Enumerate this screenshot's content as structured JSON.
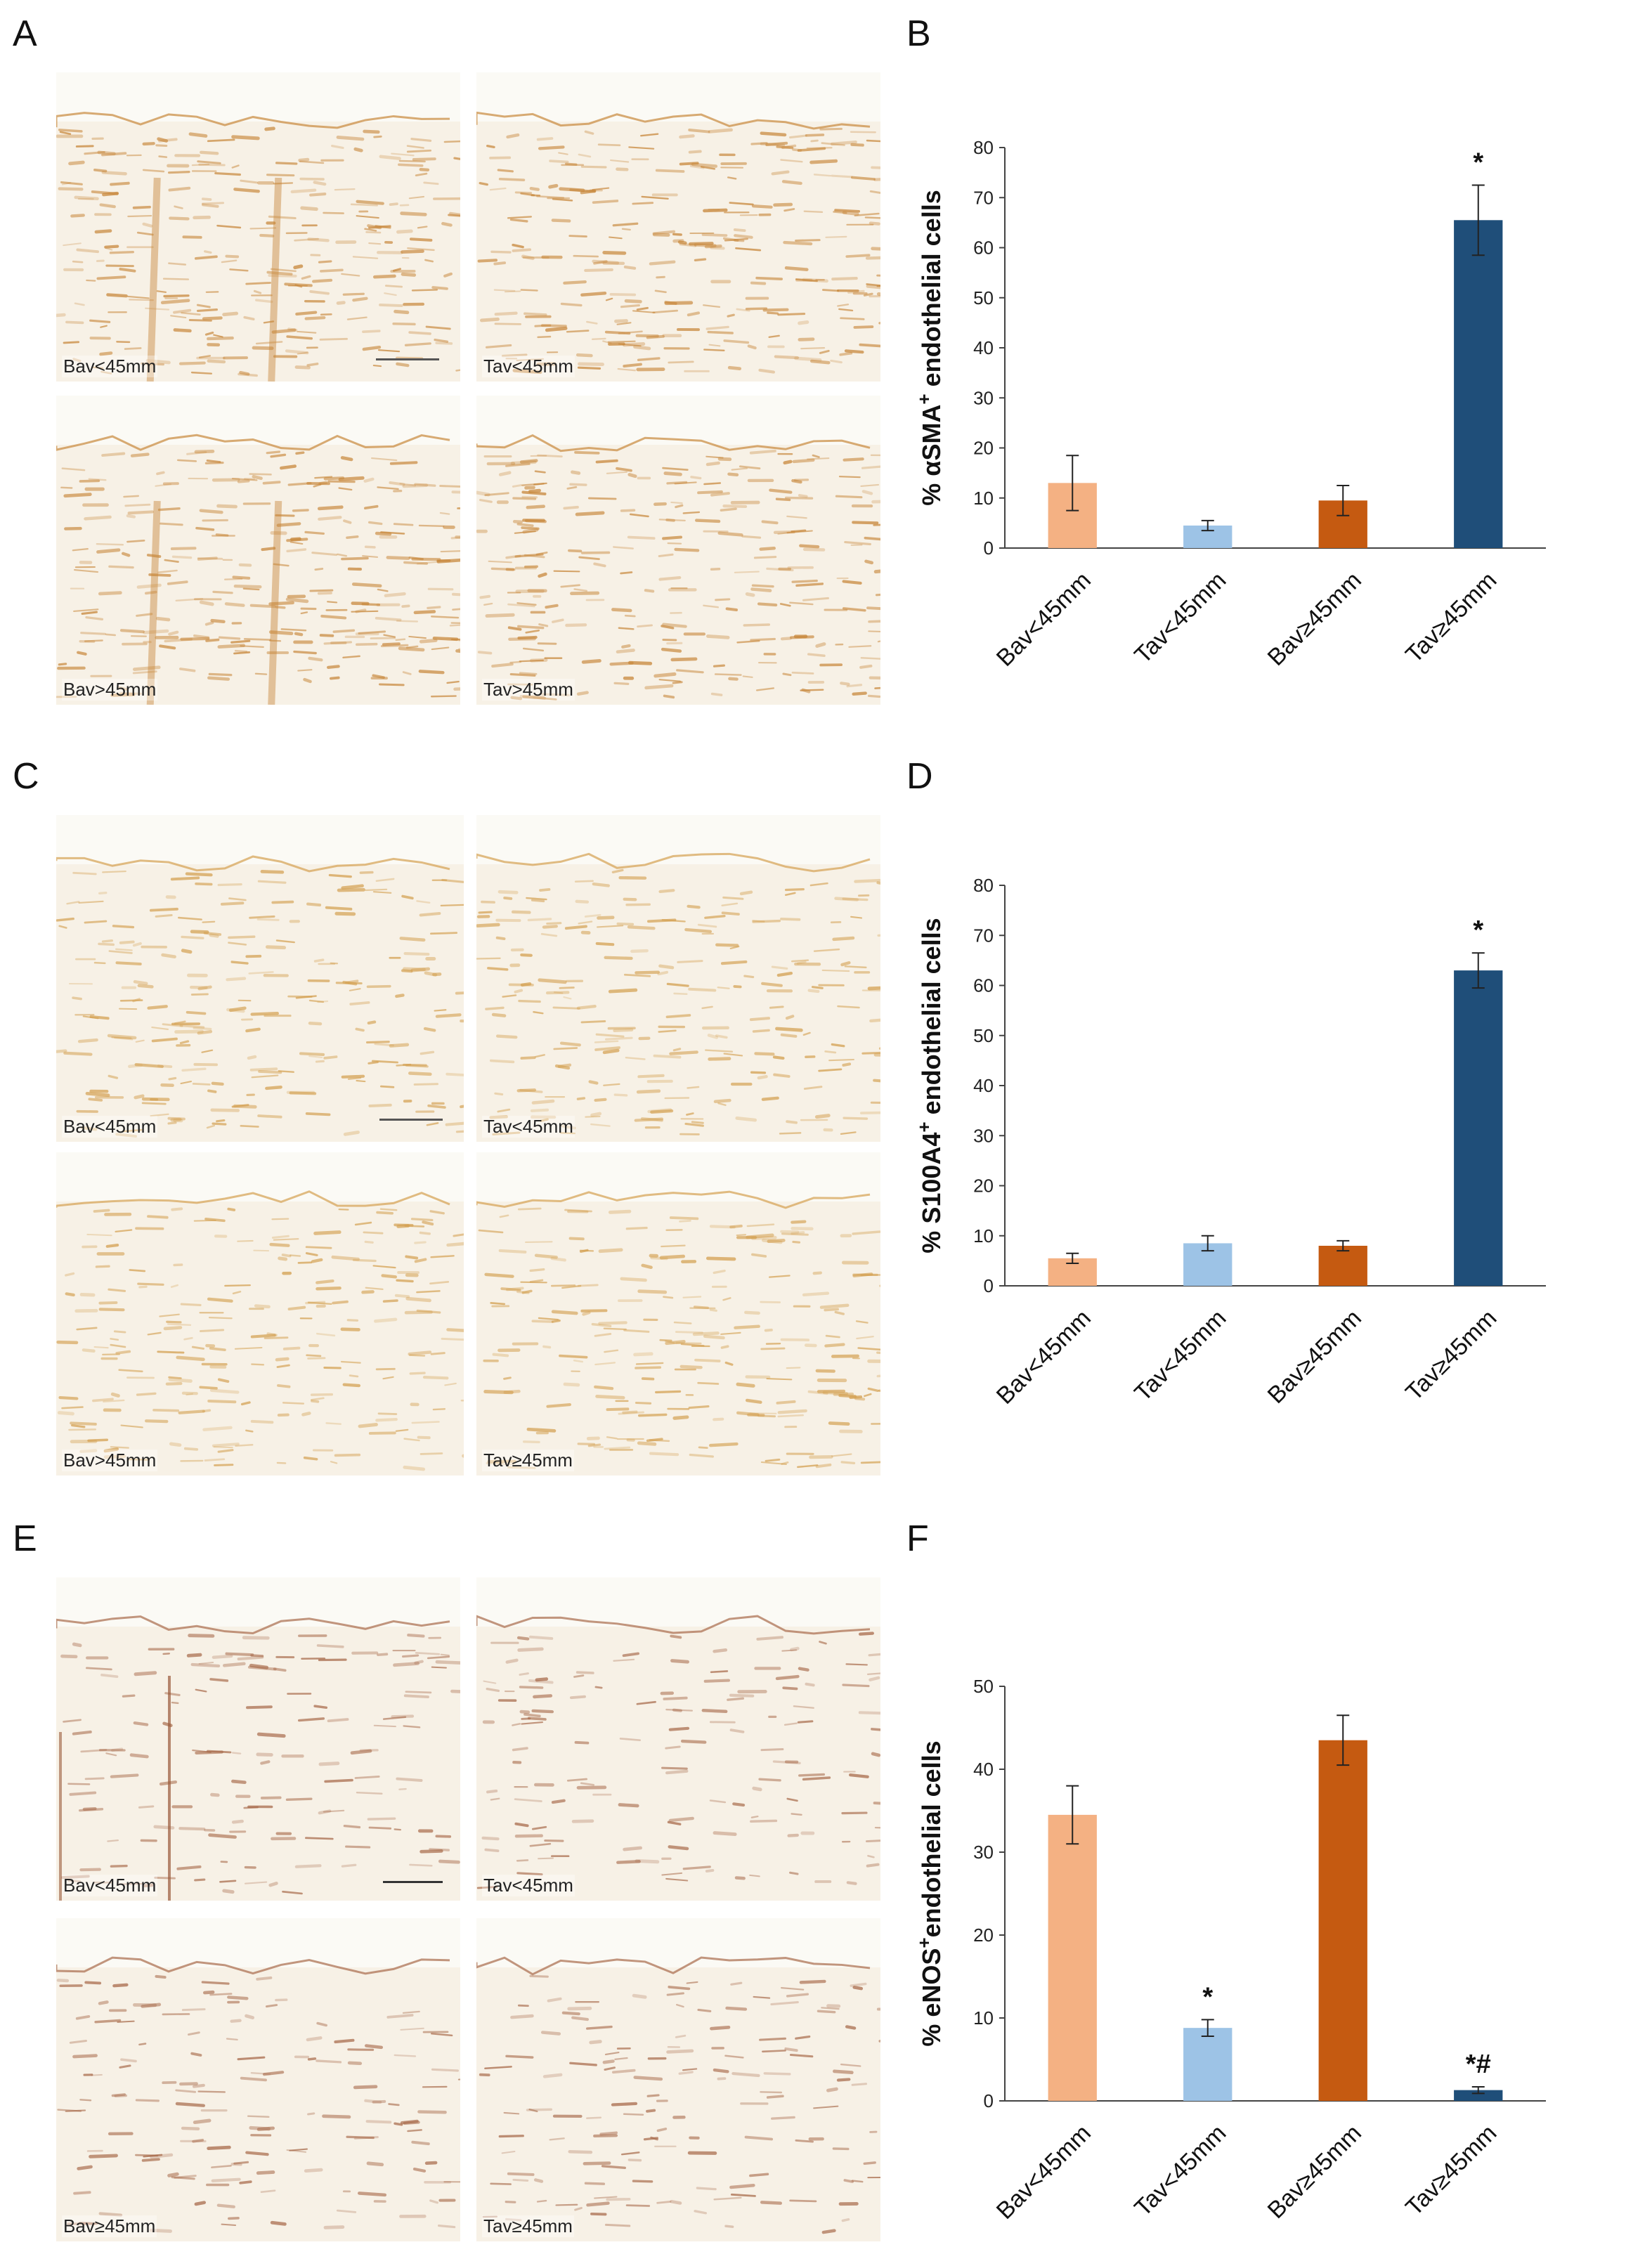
{
  "panels": [
    {
      "letter": "A"
    },
    {
      "letter": "B"
    },
    {
      "letter": "C"
    },
    {
      "letter": "D"
    },
    {
      "letter": "E"
    },
    {
      "letter": "F"
    }
  ],
  "micrographs": {
    "A": {
      "labels": [
        "Bav<45mm",
        "Tav<45mm",
        "Bav>45mm",
        "Tav>45mm"
      ],
      "stain_color": "#c8873a"
    },
    "C": {
      "labels": [
        "Bav<45mm",
        "Tav<45mm",
        "Bav>45mm",
        "Tav≥45mm"
      ],
      "stain_color": "#d4a050"
    },
    "E": {
      "labels": [
        "Bav<45mm",
        "Tav<45mm",
        "Bav≥45mm",
        "Tav≥45mm"
      ],
      "stain_color": "#a86a4a"
    }
  },
  "colors": {
    "Bav<45mm": "#f4b183",
    "Tav<45mm": "#9dc3e6",
    "Bav≥45mm": "#c55a11",
    "Tav≥45mm": "#1f4e79"
  },
  "chart_data": [
    {
      "type": "bar",
      "panel": "B",
      "categories": [
        "Bav<45mm",
        "Tav<45mm",
        "Bav≥45mm",
        "Tav≥45mm"
      ],
      "values": [
        13,
        4.5,
        9.5,
        65.5
      ],
      "errors": [
        5.5,
        1,
        3,
        7
      ],
      "annotations": [
        "",
        "",
        "",
        "*"
      ],
      "ylabel_prefix": "% αSMA",
      "ylabel_sup": "+",
      "ylabel_suffix": " endothelial cells",
      "ylim": [
        0,
        80
      ],
      "yticks": [
        0,
        10,
        20,
        30,
        40,
        50,
        60,
        70,
        80
      ],
      "grid": false
    },
    {
      "type": "bar",
      "panel": "D",
      "categories": [
        "Bav<45mm",
        "Tav<45mm",
        "Bav≥45mm",
        "Tav≥45mm"
      ],
      "values": [
        5.5,
        8.5,
        8,
        63
      ],
      "errors": [
        1,
        1.5,
        1,
        3.5
      ],
      "annotations": [
        "",
        "",
        "",
        "*"
      ],
      "ylabel_prefix": "% S100A4",
      "ylabel_sup": "+",
      "ylabel_suffix": " endothelial cells",
      "ylim": [
        0,
        80
      ],
      "yticks": [
        0,
        10,
        20,
        30,
        40,
        50,
        60,
        70,
        80
      ],
      "grid": false
    },
    {
      "type": "bar",
      "panel": "F",
      "categories": [
        "Bav<45mm",
        "Tav<45mm",
        "Bav≥45mm",
        "Tav≥45mm"
      ],
      "values": [
        34.5,
        8.8,
        43.5,
        1.3
      ],
      "errors": [
        3.5,
        1,
        3,
        0.4
      ],
      "annotations": [
        "",
        "*",
        "",
        "*#"
      ],
      "ylabel_prefix": "% eNOS",
      "ylabel_sup": "+",
      "ylabel_suffix": "endothelial cells",
      "ylim": [
        0,
        50
      ],
      "yticks": [
        0,
        10,
        20,
        30,
        40,
        50
      ],
      "grid": false
    }
  ]
}
